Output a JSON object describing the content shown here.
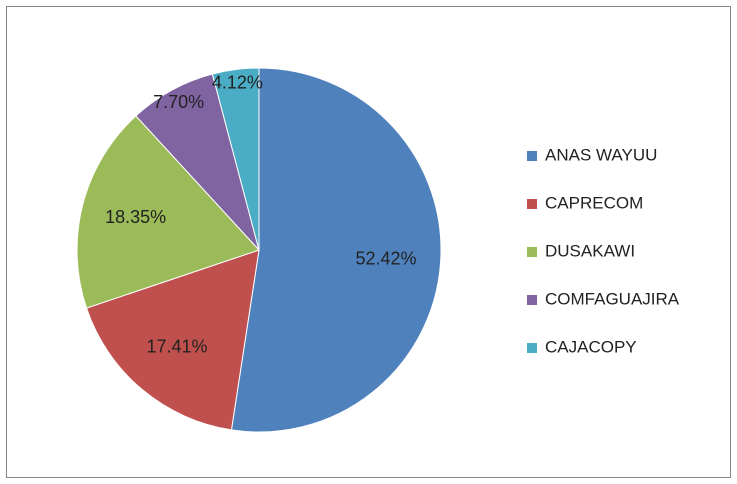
{
  "chart_data": {
    "type": "pie",
    "categories": [
      "ANAS WAYUU",
      "CAPRECOM",
      "DUSAKAWI",
      "COMFAGUAJIRA",
      "CAJACOPY"
    ],
    "values": [
      52.42,
      17.41,
      18.35,
      7.7,
      4.12
    ],
    "value_labels": [
      "52.42%",
      "17.41%",
      "18.35%",
      "7.70%",
      "4.12%"
    ],
    "colors": [
      "#4f81bd",
      "#c0504d",
      "#9bbb59",
      "#8064a2",
      "#4bacc6"
    ],
    "legend": "right"
  }
}
